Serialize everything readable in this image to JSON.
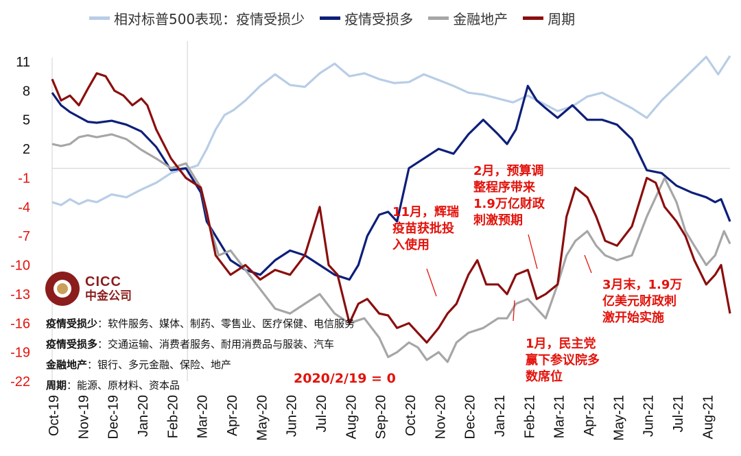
{
  "chart_data": {
    "type": "line",
    "title": "",
    "xlabel": "",
    "ylabel": "",
    "ylim": [
      -22,
      12
    ],
    "yticks": [
      11,
      8,
      5,
      2,
      -1,
      -4,
      -7,
      -10,
      -13,
      -16,
      -19,
      -22
    ],
    "x_ticks": [
      "Oct-19",
      "Nov-19",
      "Dec-19",
      "Jan-20",
      "Feb-20",
      "Mar-20",
      "Apr-20",
      "May-20",
      "Jun-20",
      "Jul-20",
      "Aug-20",
      "Sep-20",
      "Oct-20",
      "Nov-20",
      "Dec-20",
      "Jan-21",
      "Feb-21",
      "Mar-21",
      "Apr-21",
      "May-21",
      "Jun-21",
      "Jul-21",
      "Aug-21"
    ],
    "x_range": [
      0,
      22.8
    ],
    "zero_line_y": 0,
    "series": [
      {
        "name": "相对标普500表现：疫情受损少",
        "color": "#b8cde6",
        "points": [
          [
            0,
            -3.5
          ],
          [
            0.3,
            -3.8
          ],
          [
            0.6,
            -3.2
          ],
          [
            0.9,
            -3.7
          ],
          [
            1.2,
            -3.3
          ],
          [
            1.5,
            -3.5
          ],
          [
            2,
            -2.7
          ],
          [
            2.5,
            -3
          ],
          [
            3,
            -2.2
          ],
          [
            3.5,
            -1.5
          ],
          [
            4,
            -0.5
          ],
          [
            4.3,
            -0.2
          ],
          [
            4.6,
            0
          ],
          [
            4.9,
            0.3
          ],
          [
            5.2,
            2
          ],
          [
            5.5,
            4
          ],
          [
            5.8,
            5.5
          ],
          [
            6.1,
            6
          ],
          [
            6.5,
            7
          ],
          [
            7,
            8.5
          ],
          [
            7.5,
            9.7
          ],
          [
            8,
            8.6
          ],
          [
            8.5,
            8.4
          ],
          [
            9,
            9.8
          ],
          [
            9.5,
            10.8
          ],
          [
            10,
            9.5
          ],
          [
            10.5,
            9.8
          ],
          [
            11,
            9.2
          ],
          [
            11.5,
            8.8
          ],
          [
            12,
            8.9
          ],
          [
            12.5,
            9.7
          ],
          [
            13,
            9.1
          ],
          [
            13.5,
            8.5
          ],
          [
            14,
            7.8
          ],
          [
            14.5,
            7.6
          ],
          [
            15,
            7.2
          ],
          [
            15.5,
            6.8
          ],
          [
            16,
            7.5
          ],
          [
            16.5,
            6.7
          ],
          [
            17,
            5.9
          ],
          [
            17.5,
            6.4
          ],
          [
            18,
            7.4
          ],
          [
            18.5,
            7.8
          ],
          [
            19,
            7
          ],
          [
            19.5,
            6.2
          ],
          [
            20,
            5.2
          ],
          [
            20.5,
            7
          ],
          [
            21,
            8.5
          ],
          [
            21.5,
            10
          ],
          [
            22,
            11.5
          ],
          [
            22.4,
            9.7
          ],
          [
            22.8,
            11.6
          ]
        ]
      },
      {
        "name": "疫情受损多",
        "color": "#0d1f7a",
        "points": [
          [
            0,
            7.8
          ],
          [
            0.3,
            6.5
          ],
          [
            0.6,
            5.8
          ],
          [
            0.9,
            5.3
          ],
          [
            1.2,
            4.8
          ],
          [
            1.5,
            4.7
          ],
          [
            2,
            4.9
          ],
          [
            2.5,
            4.5
          ],
          [
            3,
            3.8
          ],
          [
            3.5,
            2.2
          ],
          [
            4,
            -0.2
          ],
          [
            4.5,
            0
          ],
          [
            5,
            -2.5
          ],
          [
            5.2,
            -5.5
          ],
          [
            5.6,
            -7.5
          ],
          [
            6,
            -9.5
          ],
          [
            6.5,
            -10.5
          ],
          [
            7,
            -11
          ],
          [
            7.5,
            -9.5
          ],
          [
            8,
            -8.5
          ],
          [
            8.5,
            -9
          ],
          [
            9,
            -10
          ],
          [
            9.5,
            -11
          ],
          [
            10,
            -11.5
          ],
          [
            10.3,
            -10
          ],
          [
            10.6,
            -7
          ],
          [
            11,
            -4.8
          ],
          [
            11.3,
            -4.5
          ],
          [
            11.6,
            -5.5
          ],
          [
            12,
            0
          ],
          [
            12.5,
            1
          ],
          [
            13,
            2
          ],
          [
            13.5,
            1.5
          ],
          [
            14,
            3.5
          ],
          [
            14.5,
            5
          ],
          [
            15,
            3.5
          ],
          [
            15.3,
            2.5
          ],
          [
            15.6,
            4
          ],
          [
            16,
            8.5
          ],
          [
            16.3,
            7
          ],
          [
            16.6,
            6.2
          ],
          [
            17,
            5.2
          ],
          [
            17.5,
            6.5
          ],
          [
            18,
            5
          ],
          [
            18.5,
            5
          ],
          [
            19,
            4.5
          ],
          [
            19.5,
            3
          ],
          [
            20,
            -0.2
          ],
          [
            20.5,
            -0.5
          ],
          [
            21,
            -1.8
          ],
          [
            21.5,
            -2.5
          ],
          [
            22,
            -3
          ],
          [
            22.3,
            -3.5
          ],
          [
            22.5,
            -3.2
          ],
          [
            22.8,
            -5.5
          ]
        ]
      },
      {
        "name": "金融地产",
        "color": "#a6a6a6",
        "points": [
          [
            0,
            2.5
          ],
          [
            0.3,
            2.3
          ],
          [
            0.6,
            2.5
          ],
          [
            0.9,
            3.2
          ],
          [
            1.2,
            3.4
          ],
          [
            1.5,
            3.2
          ],
          [
            2,
            3.5
          ],
          [
            2.5,
            3
          ],
          [
            3,
            1.9
          ],
          [
            3.5,
            1
          ],
          [
            4,
            0
          ],
          [
            4.5,
            0.5
          ],
          [
            5,
            -2
          ],
          [
            5.3,
            -6
          ],
          [
            5.6,
            -9
          ],
          [
            6,
            -8.5
          ],
          [
            6.5,
            -10.5
          ],
          [
            7,
            -12.5
          ],
          [
            7.5,
            -14.5
          ],
          [
            8,
            -15
          ],
          [
            8.5,
            -14
          ],
          [
            9,
            -13
          ],
          [
            9.5,
            -15
          ],
          [
            10,
            -16
          ],
          [
            10.5,
            -15.5
          ],
          [
            11,
            -17.5
          ],
          [
            11.3,
            -19.5
          ],
          [
            11.6,
            -19
          ],
          [
            12,
            -18
          ],
          [
            12.3,
            -18.5
          ],
          [
            12.6,
            -19.8
          ],
          [
            13,
            -19
          ],
          [
            13.3,
            -20
          ],
          [
            13.6,
            -18
          ],
          [
            14,
            -17
          ],
          [
            14.5,
            -16.5
          ],
          [
            15,
            -15.5
          ],
          [
            15.3,
            -15.5
          ],
          [
            15.6,
            -14
          ],
          [
            16,
            -13.5
          ],
          [
            16.3,
            -14.5
          ],
          [
            16.6,
            -15.5
          ],
          [
            17,
            -12
          ],
          [
            17.3,
            -9
          ],
          [
            17.6,
            -7.5
          ],
          [
            18,
            -6.5
          ],
          [
            18.3,
            -8
          ],
          [
            18.6,
            -9
          ],
          [
            19,
            -9.5
          ],
          [
            19.5,
            -9
          ],
          [
            20,
            -5
          ],
          [
            20.3,
            -3
          ],
          [
            20.6,
            -1
          ],
          [
            21,
            -3.5
          ],
          [
            21.3,
            -6.5
          ],
          [
            21.6,
            -8
          ],
          [
            22,
            -10
          ],
          [
            22.3,
            -9
          ],
          [
            22.6,
            -6.5
          ],
          [
            22.8,
            -7.8
          ]
        ]
      },
      {
        "name": "周期",
        "color": "#8b0e0e",
        "points": [
          [
            0,
            9.2
          ],
          [
            0.3,
            7
          ],
          [
            0.6,
            7.5
          ],
          [
            0.9,
            6.5
          ],
          [
            1.2,
            8.2
          ],
          [
            1.5,
            9.8
          ],
          [
            1.8,
            9.5
          ],
          [
            2.1,
            8
          ],
          [
            2.4,
            7.5
          ],
          [
            2.7,
            6.5
          ],
          [
            3,
            7.2
          ],
          [
            3.2,
            6.5
          ],
          [
            3.5,
            4
          ],
          [
            4,
            1
          ],
          [
            4.5,
            -1
          ],
          [
            5,
            -2
          ],
          [
            5.2,
            -4.5
          ],
          [
            5.5,
            -9
          ],
          [
            6,
            -11
          ],
          [
            6.5,
            -10
          ],
          [
            7,
            -11.5
          ],
          [
            7.5,
            -10.5
          ],
          [
            8,
            -11
          ],
          [
            8.5,
            -9
          ],
          [
            9,
            -4
          ],
          [
            9.3,
            -10
          ],
          [
            9.6,
            -11
          ],
          [
            10,
            -16
          ],
          [
            10.3,
            -14
          ],
          [
            10.6,
            -13.5
          ],
          [
            11,
            -15
          ],
          [
            11.3,
            -15.2
          ],
          [
            11.6,
            -16.5
          ],
          [
            12,
            -16
          ],
          [
            12.3,
            -17
          ],
          [
            12.6,
            -18
          ],
          [
            13,
            -16.5
          ],
          [
            13.3,
            -15
          ],
          [
            13.6,
            -14
          ],
          [
            14,
            -11
          ],
          [
            14.3,
            -9.5
          ],
          [
            14.6,
            -12
          ],
          [
            15,
            -12
          ],
          [
            15.3,
            -13
          ],
          [
            15.6,
            -11
          ],
          [
            16,
            -10.5
          ],
          [
            16.3,
            -13.5
          ],
          [
            16.6,
            -13
          ],
          [
            17,
            -12
          ],
          [
            17.3,
            -5
          ],
          [
            17.6,
            -2
          ],
          [
            18,
            -3
          ],
          [
            18.3,
            -5
          ],
          [
            18.6,
            -7.5
          ],
          [
            19,
            -8
          ],
          [
            19.5,
            -6
          ],
          [
            20,
            -1
          ],
          [
            20.3,
            -1.5
          ],
          [
            20.6,
            -4
          ],
          [
            21,
            -5.5
          ],
          [
            21.3,
            -7
          ],
          [
            21.6,
            -9.5
          ],
          [
            22,
            -12
          ],
          [
            22.3,
            -11
          ],
          [
            22.5,
            -10
          ],
          [
            22.8,
            -15
          ]
        ]
      }
    ],
    "annotations": [
      {
        "text": "11月，辉瑞\n疫苗获批投\n入使用",
        "event": "Nov 2020"
      },
      {
        "text": "2月，预算调\n整程序带来\n1.9万亿财政\n刺激预期",
        "event": "Feb 2021"
      },
      {
        "text": "1月，民主党\n赢下参议院多\n数席位",
        "event": "Jan 2021"
      },
      {
        "text": "3月末，1.9万\n亿美元财政刺\n激开始实施",
        "event": "Mar 2021"
      }
    ],
    "baseline_note": "2020/2/19 = 0",
    "categories_note": [
      {
        "label": "疫情受损少",
        "desc": "：软件服务、媒体、制药、零售业、医疗保健、电信服务"
      },
      {
        "label": "疫情受损多",
        "desc": "：交通运输、消费者服务、耐用消费品与服装、汽车"
      },
      {
        "label": "金融地产",
        "desc": "：银行、多元金融、保险、地产"
      },
      {
        "label": "周期",
        "desc": "：能源、原材料、资本品"
      }
    ]
  },
  "logo": {
    "en": "CICC",
    "cn": "中金公司"
  }
}
